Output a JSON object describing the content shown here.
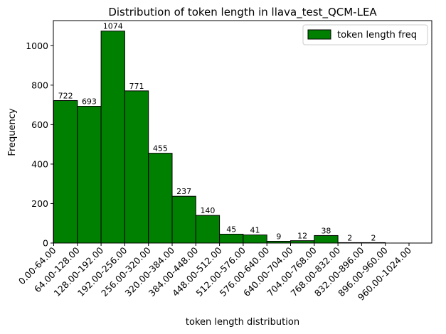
{
  "chart_data": {
    "type": "bar",
    "title": "Distribution of token length in llava_test_QCM-LEA",
    "xlabel": "token length distribution",
    "ylabel": "Frequency",
    "ylim": [
      0,
      1127
    ],
    "yticks": [
      0,
      200,
      400,
      600,
      800,
      1000
    ],
    "categories": [
      "0.00-64.00",
      "64.00-128.00",
      "128.00-192.00",
      "192.00-256.00",
      "256.00-320.00",
      "320.00-384.00",
      "384.00-448.00",
      "448.00-512.00",
      "512.00-576.00",
      "576.00-640.00",
      "640.00-704.00",
      "704.00-768.00",
      "768.00-832.00",
      "832.00-896.00",
      "896.00-960.00",
      "960.00-1024.00"
    ],
    "series": [
      {
        "name": "token length freq",
        "color": "#008000",
        "values": [
          722,
          693,
          1074,
          771,
          455,
          237,
          140,
          45,
          41,
          9,
          12,
          38,
          2,
          2,
          0,
          0
        ],
        "labels": [
          "722",
          "693",
          "1074",
          "771",
          "455",
          "237",
          "140",
          "45",
          "41",
          "9",
          "12",
          "38",
          "2",
          "2",
          "",
          ""
        ]
      }
    ],
    "legend": "top-right",
    "grid": false
  }
}
